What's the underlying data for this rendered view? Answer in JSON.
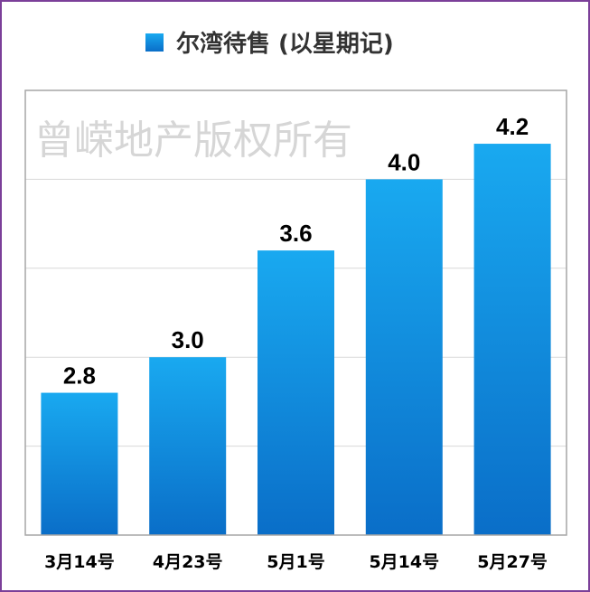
{
  "chart_data": {
    "type": "bar",
    "categories": [
      "3月14号",
      "4月23号",
      "5月1号",
      "5月14号",
      "5月27号"
    ],
    "series": [
      {
        "name": "尔湾待售 (以星期记)",
        "values": [
          2.8,
          3.0,
          3.6,
          4.0,
          4.2
        ]
      }
    ],
    "value_labels": [
      "2.8",
      "3.0",
      "3.6",
      "4.0",
      "4.2"
    ],
    "ylim": [
      2.0,
      4.5
    ],
    "grid": true,
    "legend_position": "top",
    "watermark": "曾嵘地产版权所有",
    "colors": {
      "bar_top": "#19a9f0",
      "bar_bottom": "#0a6ec8",
      "frame": "#7b3f99",
      "grid": "#d9d9d9",
      "plot_border": "#a6a6a6"
    }
  }
}
